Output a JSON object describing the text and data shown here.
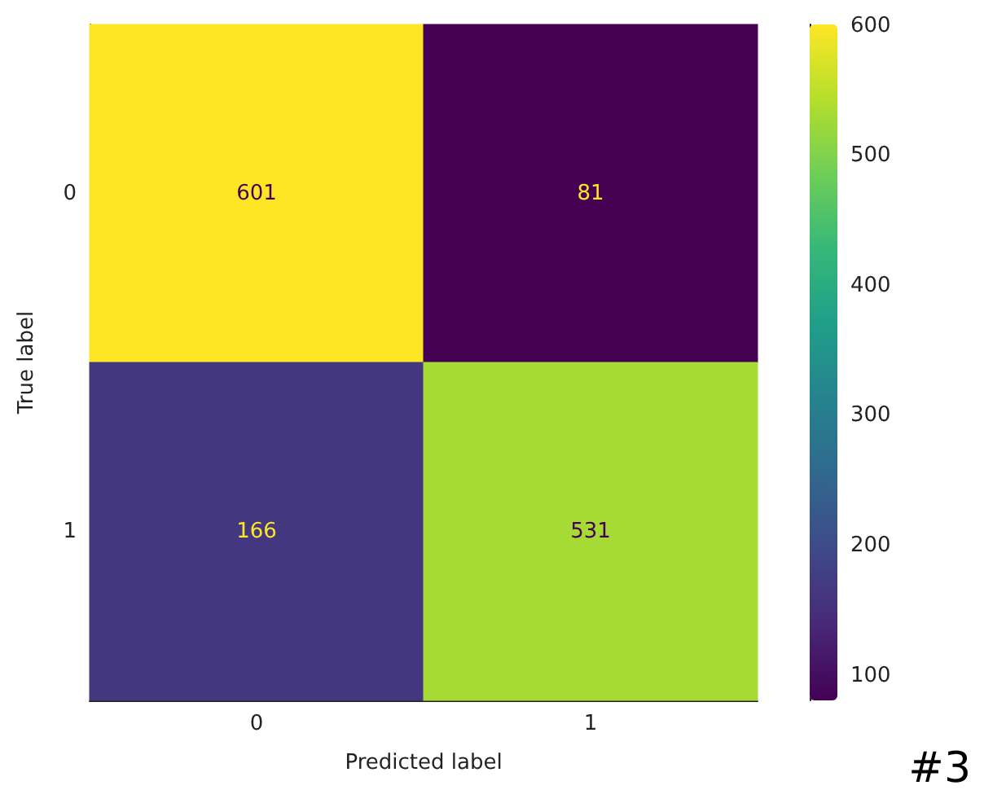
{
  "chart_data": {
    "type": "heatmap",
    "xlabel": "Predicted label",
    "ylabel": "True label",
    "categories": [
      "0",
      "1"
    ],
    "y_categories": [
      "0",
      "1"
    ],
    "cells": [
      [
        601,
        81
      ],
      [
        166,
        531
      ]
    ],
    "clim": [
      81,
      601
    ],
    "cticks": [
      100,
      200,
      300,
      400,
      500,
      600
    ],
    "data_labels": true,
    "annotations": [
      "#3"
    ]
  }
}
